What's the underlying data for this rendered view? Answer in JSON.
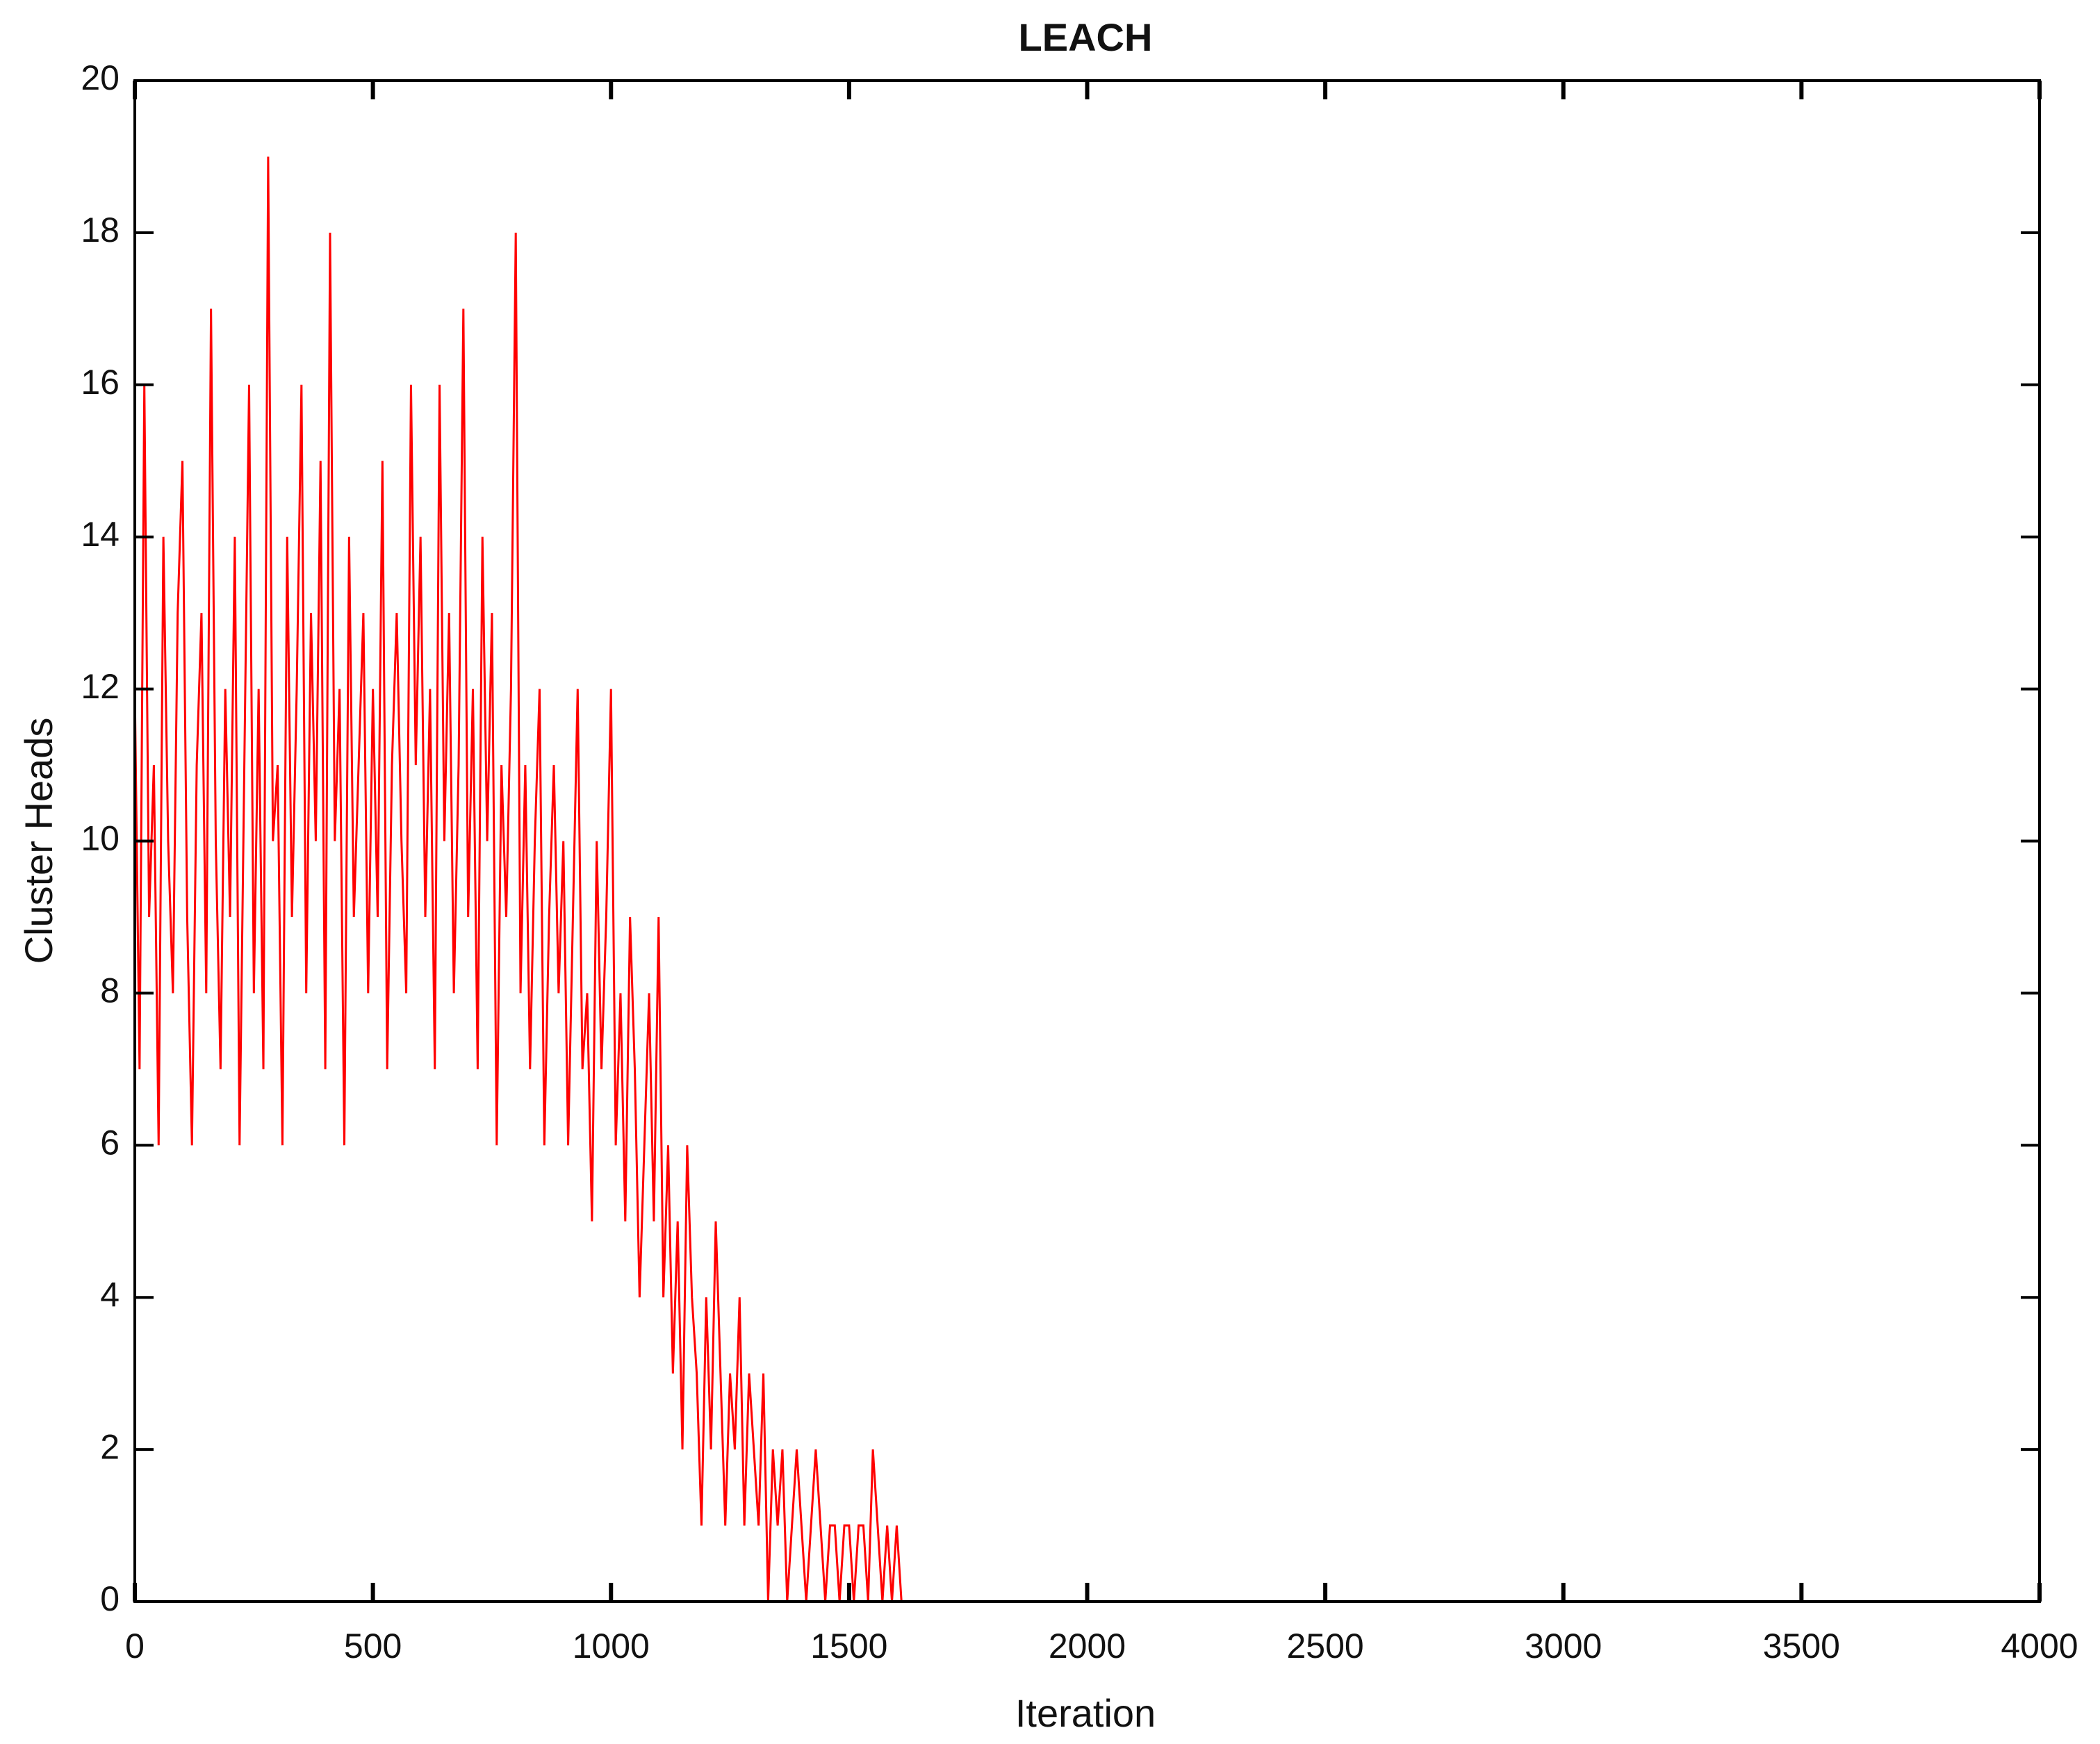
{
  "chart_data": {
    "type": "line",
    "title": "LEACH",
    "x_label": "Iteration",
    "y_label": "Cluster Heads",
    "x": [
      0,
      10,
      20,
      30,
      40,
      50,
      60,
      70,
      80,
      90,
      100,
      110,
      120,
      130,
      140,
      150,
      160,
      170,
      180,
      190,
      200,
      210,
      220,
      230,
      240,
      250,
      260,
      270,
      280,
      290,
      300,
      310,
      320,
      330,
      340,
      350,
      360,
      370,
      380,
      390,
      400,
      410,
      420,
      430,
      440,
      450,
      460,
      470,
      480,
      490,
      500,
      510,
      520,
      530,
      540,
      550,
      560,
      570,
      580,
      590,
      600,
      610,
      620,
      630,
      640,
      650,
      660,
      670,
      680,
      690,
      700,
      710,
      720,
      730,
      740,
      750,
      760,
      770,
      780,
      790,
      800,
      810,
      820,
      830,
      840,
      850,
      860,
      870,
      880,
      890,
      900,
      910,
      920,
      930,
      940,
      950,
      960,
      970,
      980,
      990,
      1000,
      1010,
      1020,
      1030,
      1040,
      1050,
      1060,
      1070,
      1080,
      1090,
      1100,
      1110,
      1120,
      1130,
      1140,
      1150,
      1160,
      1170,
      1180,
      1190,
      1200,
      1210,
      1220,
      1230,
      1240,
      1250,
      1260,
      1270,
      1280,
      1290,
      1300,
      1310,
      1320,
      1330,
      1340,
      1350,
      1360,
      1370,
      1380,
      1390,
      1400,
      1410,
      1420,
      1430,
      1440,
      1450,
      1460,
      1470,
      1480,
      1490,
      1500,
      1510,
      1520,
      1530,
      1540,
      1550,
      1560,
      1570,
      1580,
      1590,
      1600,
      1610,
      4000
    ],
    "series": [
      {
        "color": "#ff0000",
        "values": [
          12,
          7,
          16,
          9,
          11,
          6,
          14,
          10,
          8,
          13,
          15,
          9,
          6,
          11,
          13,
          8,
          17,
          10,
          7,
          12,
          9,
          14,
          6,
          11,
          16,
          8,
          12,
          7,
          19,
          10,
          11,
          6,
          14,
          9,
          12,
          16,
          8,
          13,
          10,
          15,
          7,
          18,
          10,
          12,
          6,
          14,
          9,
          11,
          13,
          8,
          12,
          9,
          15,
          7,
          11,
          13,
          10,
          8,
          16,
          11,
          14,
          9,
          12,
          7,
          16,
          10,
          13,
          8,
          11,
          17,
          9,
          12,
          7,
          14,
          10,
          13,
          6,
          11,
          9,
          12,
          18,
          8,
          11,
          7,
          10,
          12,
          6,
          9,
          11,
          8,
          10,
          6,
          9,
          12,
          7,
          8,
          5,
          10,
          7,
          9,
          12,
          6,
          8,
          5,
          9,
          7,
          4,
          6,
          8,
          5,
          9,
          4,
          6,
          3,
          5,
          2,
          6,
          4,
          3,
          1,
          4,
          2,
          5,
          3,
          1,
          3,
          2,
          4,
          1,
          3,
          2,
          1,
          3,
          0,
          2,
          1,
          2,
          0,
          1,
          2,
          1,
          0,
          1,
          2,
          1,
          0,
          1,
          1,
          0,
          1,
          1,
          0,
          1,
          1,
          0,
          2,
          1,
          0,
          1,
          0,
          1,
          0,
          0
        ]
      }
    ],
    "xlim": [
      0,
      4000
    ],
    "ylim": [
      0,
      20
    ],
    "xticks": [
      0,
      500,
      1000,
      1500,
      2000,
      2500,
      3000,
      3500,
      4000
    ],
    "yticks": [
      0,
      2,
      4,
      6,
      8,
      10,
      12,
      14,
      16,
      18,
      20
    ]
  }
}
